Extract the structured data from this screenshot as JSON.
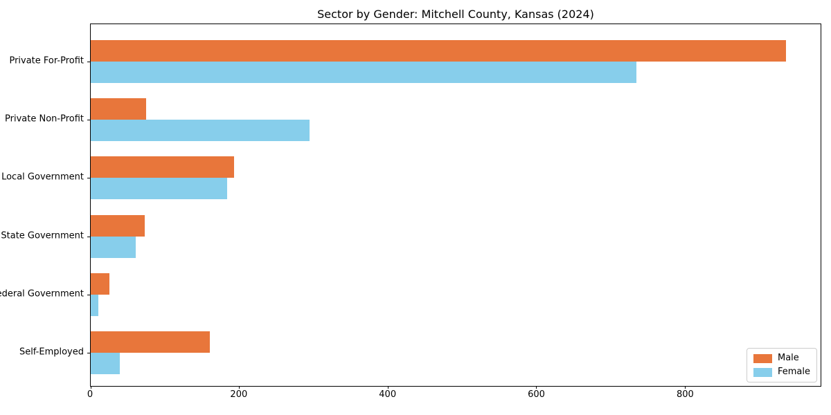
{
  "chart_data": {
    "type": "bar",
    "orientation": "horizontal",
    "title": "Sector by Gender: Mitchell County, Kansas (2024)",
    "xlabel": "",
    "ylabel": "",
    "categories": [
      "Private For-Profit",
      "Private Non-Profit",
      "Local Government",
      "State Government",
      "Federal Government",
      "Self-Employed"
    ],
    "series": [
      {
        "name": "Male",
        "color": "#E8763B",
        "values": [
          936,
          75,
          193,
          73,
          25,
          160
        ]
      },
      {
        "name": "Female",
        "color": "#87CEEB",
        "values": [
          735,
          295,
          184,
          61,
          10,
          39
        ]
      }
    ],
    "xlim": [
      0,
      983
    ],
    "xticks": [
      0,
      200,
      400,
      600,
      800
    ],
    "grid": false,
    "legend_position": "lower right",
    "background_color": "#ffffff",
    "spine_color": "#000000"
  }
}
